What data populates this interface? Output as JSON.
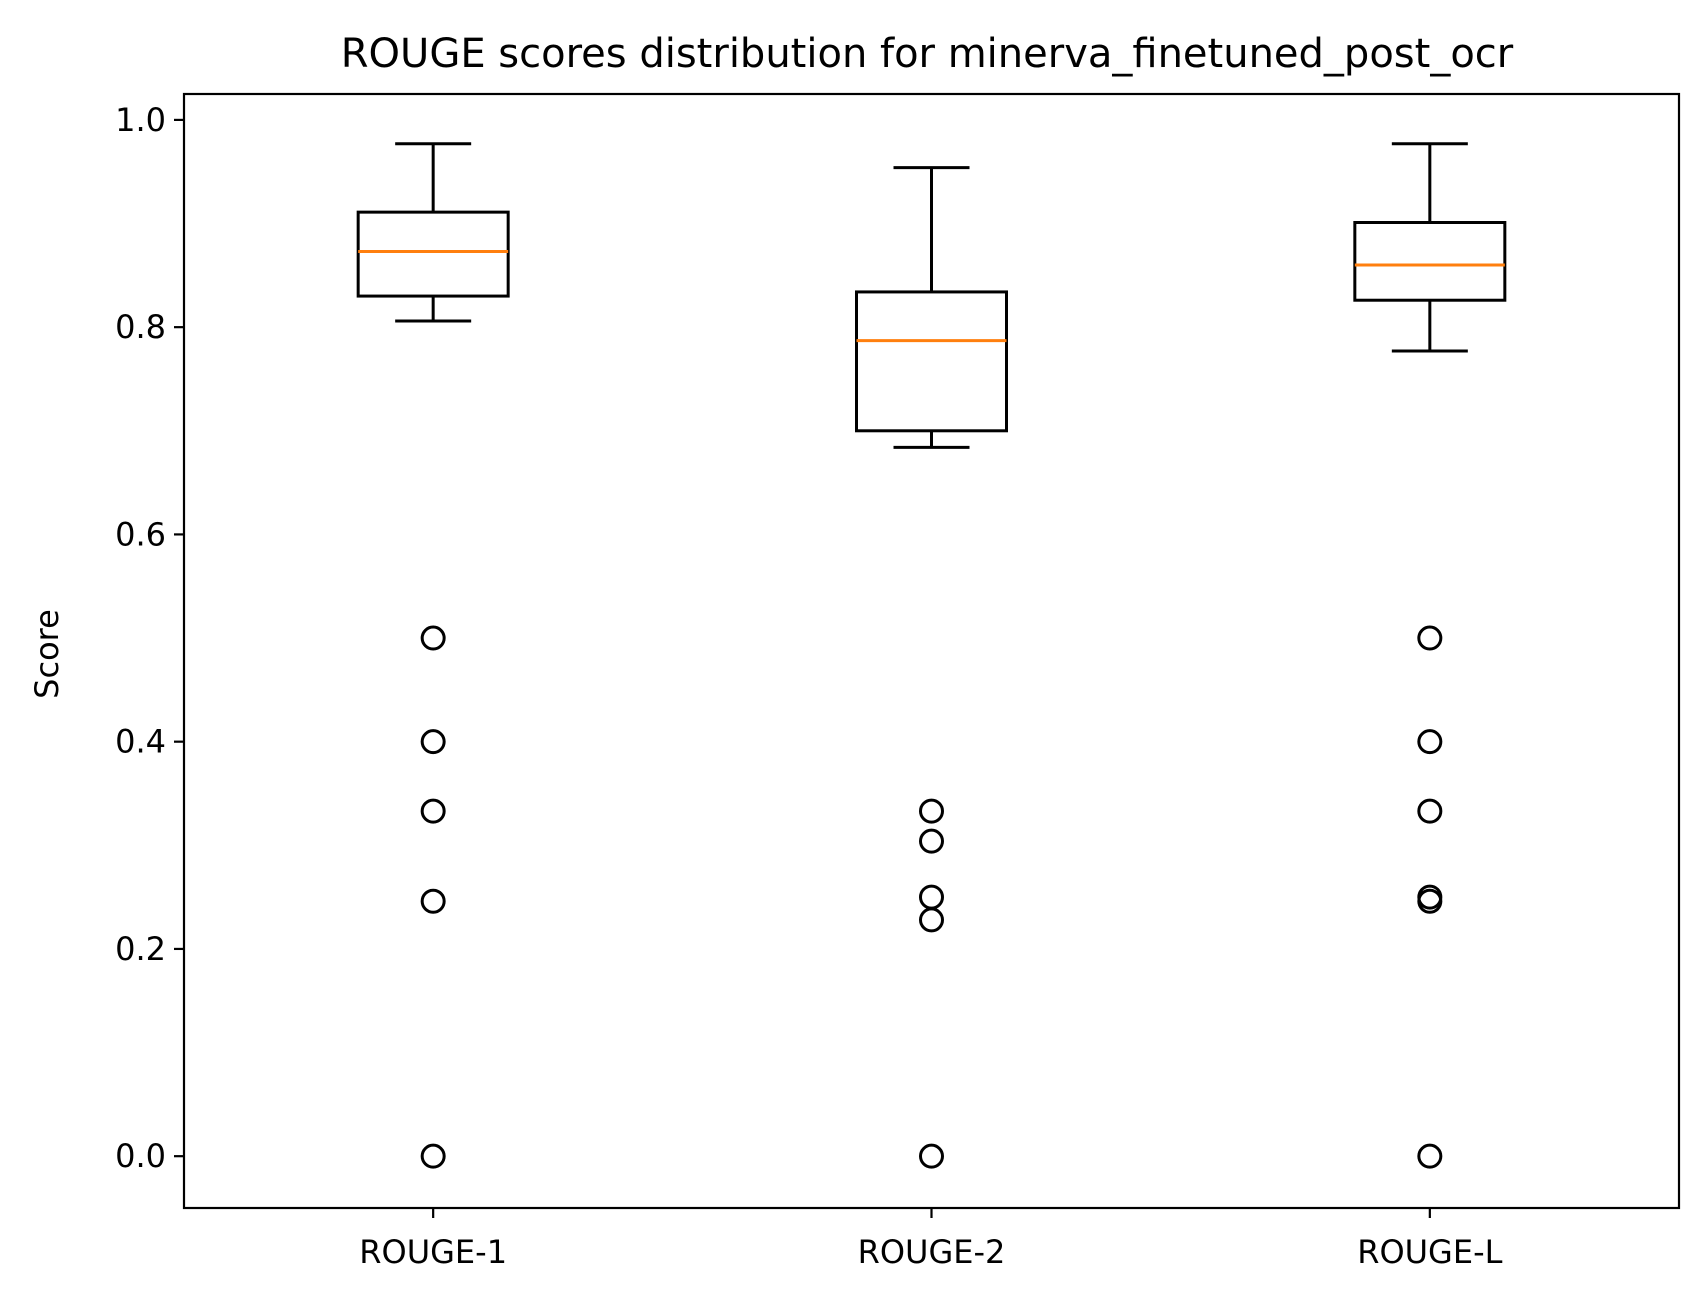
{
  "chart_data": {
    "type": "box",
    "title": "ROUGE scores distribution for minerva_finetuned_post_ocr",
    "xlabel": "",
    "ylabel": "Score",
    "ylim": [
      -0.05,
      1.025
    ],
    "yticks": [
      0.0,
      0.2,
      0.4,
      0.6,
      0.8,
      1.0
    ],
    "ytick_labels": [
      "0.0",
      "0.2",
      "0.4",
      "0.6",
      "0.8",
      "1.0"
    ],
    "grid": false,
    "categories": [
      "ROUGE-1",
      "ROUGE-2",
      "ROUGE-L"
    ],
    "boxes": [
      {
        "name": "ROUGE-1",
        "whisker_low": 0.806,
        "q1": 0.83,
        "median": 0.873,
        "q3": 0.911,
        "whisker_high": 0.977,
        "outliers": [
          0.5,
          0.4,
          0.333,
          0.246,
          0.0
        ]
      },
      {
        "name": "ROUGE-2",
        "whisker_low": 0.684,
        "q1": 0.7,
        "median": 0.787,
        "q3": 0.834,
        "whisker_high": 0.954,
        "outliers": [
          0.333,
          0.304,
          0.25,
          0.228,
          0.0
        ]
      },
      {
        "name": "ROUGE-L",
        "whisker_low": 0.777,
        "q1": 0.826,
        "median": 0.86,
        "q3": 0.901,
        "whisker_high": 0.977,
        "outliers": [
          0.5,
          0.4,
          0.333,
          0.25,
          0.246,
          0.0
        ]
      }
    ],
    "colors": {
      "box": "#000000",
      "median": "#ff7f0e",
      "outlier": "#000000"
    }
  }
}
